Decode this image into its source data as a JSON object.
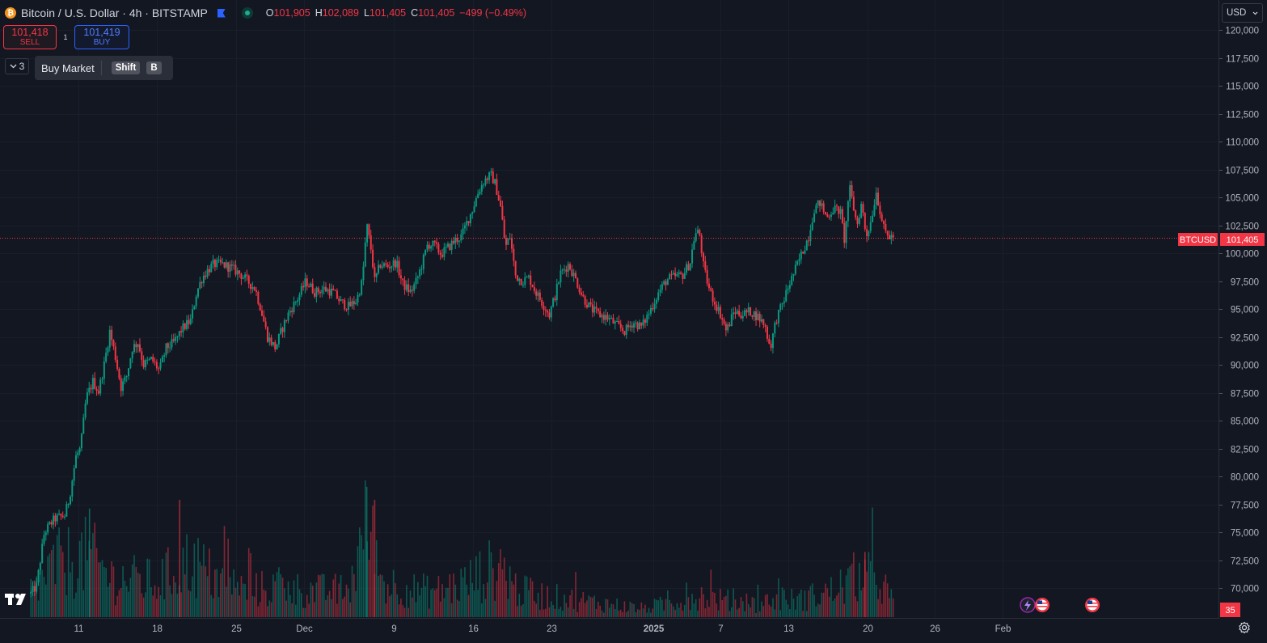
{
  "header": {
    "symbol_title": "Bitcoin / U.S. Dollar · 4h · BITSTAMP",
    "ohlc": {
      "o_label": "O",
      "o_value": "101,905",
      "h_label": "H",
      "h_value": "102,089",
      "l_label": "L",
      "l_value": "101,405",
      "c_label": "C",
      "c_value": "101,405",
      "change": "−499 (−0.49%)"
    }
  },
  "trade": {
    "sell_price": "101,418",
    "sell_label": "SELL",
    "spread": "1",
    "buy_price": "101,419",
    "buy_label": "BUY"
  },
  "indicators_toggle": {
    "count": "3"
  },
  "tooltip": {
    "label": "Buy Market",
    "key1": "Shift",
    "key2": "B"
  },
  "currency_select": "USD",
  "price_line": {
    "symbol": "BTCUSD",
    "value": "101,405"
  },
  "volume_scale_label": "35",
  "colors": {
    "up": "#089981",
    "down": "#f23645",
    "background": "#131722",
    "price_line": "#f23645"
  },
  "chart_data": {
    "type": "candlestick",
    "timeframe": "4h",
    "ylim": [
      68000,
      121500
    ],
    "y_ticks": [
      70000,
      72500,
      75000,
      77500,
      80000,
      82500,
      85000,
      87500,
      90000,
      92500,
      95000,
      97500,
      100000,
      102500,
      105000,
      107500,
      110000,
      112500,
      115000,
      117500,
      120000
    ],
    "y_tick_labels": [
      "70,000",
      "72,500",
      "75,000",
      "77,500",
      "80,000",
      "82,500",
      "85,000",
      "87,500",
      "90,000",
      "92,500",
      "95,000",
      "97,500",
      "100,000",
      "102,500",
      "105,000",
      "107,500",
      "110,000",
      "112,500",
      "115,000",
      "117,500",
      "120,000"
    ],
    "x_ticks": [
      {
        "label": "11",
        "day": 11,
        "bold": false
      },
      {
        "label": "18",
        "day": 18,
        "bold": false
      },
      {
        "label": "25",
        "day": 25,
        "bold": false
      },
      {
        "label": "Dec",
        "day": 31,
        "bold": false
      },
      {
        "label": "9",
        "day": 39,
        "bold": false
      },
      {
        "label": "16",
        "day": 46,
        "bold": false
      },
      {
        "label": "23",
        "day": 53,
        "bold": false
      },
      {
        "label": "2025",
        "day": 62,
        "bold": true
      },
      {
        "label": "7",
        "day": 68,
        "bold": false
      },
      {
        "label": "13",
        "day": 74,
        "bold": false
      },
      {
        "label": "20",
        "day": 81,
        "bold": false
      },
      {
        "label": "26",
        "day": 87,
        "bold": false
      },
      {
        "label": "Feb",
        "day": 93,
        "bold": false
      }
    ],
    "close_path": [
      [
        6.8,
        69500
      ],
      [
        7.3,
        70200
      ],
      [
        8.0,
        75000
      ],
      [
        8.9,
        76200
      ],
      [
        9.8,
        76500
      ],
      [
        10.2,
        78000
      ],
      [
        10.8,
        81800
      ],
      [
        11.2,
        82500
      ],
      [
        11.7,
        87000
      ],
      [
        12.3,
        88500
      ],
      [
        12.8,
        87600
      ],
      [
        13.3,
        90000
      ],
      [
        13.8,
        93000
      ],
      [
        14.3,
        90700
      ],
      [
        14.8,
        88000
      ],
      [
        15.3,
        89000
      ],
      [
        15.8,
        91500
      ],
      [
        16.3,
        92000
      ],
      [
        16.8,
        90000
      ],
      [
        17.5,
        90500
      ],
      [
        18.2,
        89500
      ],
      [
        18.8,
        91500
      ],
      [
        19.5,
        92000
      ],
      [
        20.2,
        93200
      ],
      [
        21.0,
        94000
      ],
      [
        21.5,
        96500
      ],
      [
        22.0,
        97800
      ],
      [
        22.5,
        98500
      ],
      [
        23.0,
        99000
      ],
      [
        23.8,
        99000
      ],
      [
        24.5,
        98700
      ],
      [
        25.3,
        98200
      ],
      [
        26.0,
        97500
      ],
      [
        26.7,
        96800
      ],
      [
        27.2,
        95000
      ],
      [
        27.8,
        92500
      ],
      [
        28.5,
        91500
      ],
      [
        29.0,
        93000
      ],
      [
        29.7,
        94700
      ],
      [
        30.5,
        96000
      ],
      [
        31.2,
        97500
      ],
      [
        32.0,
        96500
      ],
      [
        32.8,
        96800
      ],
      [
        33.6,
        96500
      ],
      [
        34.3,
        95600
      ],
      [
        35.0,
        95200
      ],
      [
        35.7,
        95800
      ],
      [
        36.2,
        97500
      ],
      [
        36.6,
        102500
      ],
      [
        37.0,
        100200
      ],
      [
        37.3,
        97500
      ],
      [
        37.8,
        99000
      ],
      [
        38.5,
        98800
      ],
      [
        39.2,
        99200
      ],
      [
        39.8,
        97200
      ],
      [
        40.5,
        96500
      ],
      [
        41.0,
        97500
      ],
      [
        41.5,
        99000
      ],
      [
        42.0,
        100800
      ],
      [
        42.6,
        100700
      ],
      [
        43.2,
        99900
      ],
      [
        43.8,
        100500
      ],
      [
        44.5,
        101200
      ],
      [
        45.0,
        101500
      ],
      [
        45.5,
        102800
      ],
      [
        46.0,
        104000
      ],
      [
        46.5,
        105500
      ],
      [
        47.0,
        106500
      ],
      [
        47.6,
        107000
      ],
      [
        48.0,
        106200
      ],
      [
        48.5,
        104000
      ],
      [
        48.9,
        100500
      ],
      [
        49.3,
        101500
      ],
      [
        49.8,
        98000
      ],
      [
        50.4,
        97500
      ],
      [
        51.0,
        97800
      ],
      [
        51.6,
        96500
      ],
      [
        52.2,
        95500
      ],
      [
        52.8,
        94500
      ],
      [
        53.3,
        96200
      ],
      [
        53.8,
        98200
      ],
      [
        54.5,
        99000
      ],
      [
        55.2,
        97500
      ],
      [
        55.8,
        96000
      ],
      [
        56.5,
        95000
      ],
      [
        57.2,
        94500
      ],
      [
        58.0,
        94200
      ],
      [
        58.8,
        93500
      ],
      [
        59.5,
        93000
      ],
      [
        60.2,
        93800
      ],
      [
        61.0,
        93400
      ],
      [
        61.8,
        95000
      ],
      [
        62.5,
        96500
      ],
      [
        63.2,
        97600
      ],
      [
        63.9,
        97900
      ],
      [
        64.6,
        98000
      ],
      [
        65.3,
        99200
      ],
      [
        65.7,
        101700
      ],
      [
        66.1,
        101900
      ],
      [
        66.5,
        98600
      ],
      [
        67.0,
        96700
      ],
      [
        67.5,
        95500
      ],
      [
        68.0,
        94500
      ],
      [
        68.5,
        93000
      ],
      [
        69.2,
        94800
      ],
      [
        69.9,
        94500
      ],
      [
        70.6,
        94800
      ],
      [
        71.3,
        94300
      ],
      [
        71.9,
        93600
      ],
      [
        72.4,
        91500
      ],
      [
        72.9,
        94000
      ],
      [
        73.5,
        95500
      ],
      [
        74.0,
        97000
      ],
      [
        74.6,
        98500
      ],
      [
        75.2,
        100000
      ],
      [
        75.8,
        101500
      ],
      [
        76.3,
        104000
      ],
      [
        76.8,
        104500
      ],
      [
        77.4,
        103200
      ],
      [
        78.0,
        104000
      ],
      [
        78.6,
        103800
      ],
      [
        79.0,
        101000
      ],
      [
        79.4,
        106000
      ],
      [
        79.8,
        104000
      ],
      [
        80.1,
        102500
      ],
      [
        80.5,
        104500
      ],
      [
        80.9,
        101500
      ],
      [
        81.3,
        102800
      ],
      [
        81.8,
        105500
      ],
      [
        82.2,
        103500
      ],
      [
        82.5,
        102000
      ],
      [
        82.9,
        101500
      ],
      [
        83.4,
        101405
      ]
    ],
    "volume_path": [
      [
        6.8,
        6
      ],
      [
        9.0,
        12
      ],
      [
        12.0,
        14
      ],
      [
        14.0,
        9
      ],
      [
        18.0,
        8
      ],
      [
        21.0,
        13
      ],
      [
        23.0,
        9
      ],
      [
        26.0,
        6
      ],
      [
        29.0,
        7
      ],
      [
        31.0,
        6
      ],
      [
        35.0,
        6
      ],
      [
        36.6,
        22
      ],
      [
        38.0,
        8
      ],
      [
        41.0,
        6
      ],
      [
        43.0,
        6
      ],
      [
        45.5,
        8
      ],
      [
        48.5,
        12
      ],
      [
        50.0,
        6
      ],
      [
        52.0,
        5
      ],
      [
        55.0,
        4
      ],
      [
        58.0,
        3
      ],
      [
        61.0,
        2
      ],
      [
        63.0,
        3
      ],
      [
        66.0,
        5
      ],
      [
        68.0,
        4
      ],
      [
        71.0,
        3
      ],
      [
        73.0,
        4
      ],
      [
        75.0,
        4
      ],
      [
        78.0,
        6
      ],
      [
        80.5,
        10
      ],
      [
        82.5,
        7
      ],
      [
        83.4,
        3
      ]
    ],
    "volume_highlights": [
      {
        "day": 36.6,
        "value": 30,
        "dir": "up"
      },
      {
        "day": 37.3,
        "value": 27,
        "dir": "down"
      },
      {
        "day": 12.0,
        "value": 25,
        "dir": "up"
      },
      {
        "day": 20.0,
        "value": 27,
        "dir": "down"
      },
      {
        "day": 80.8,
        "value": 15,
        "dir": "down"
      }
    ],
    "volume_max": 35,
    "last_price": 101405
  }
}
